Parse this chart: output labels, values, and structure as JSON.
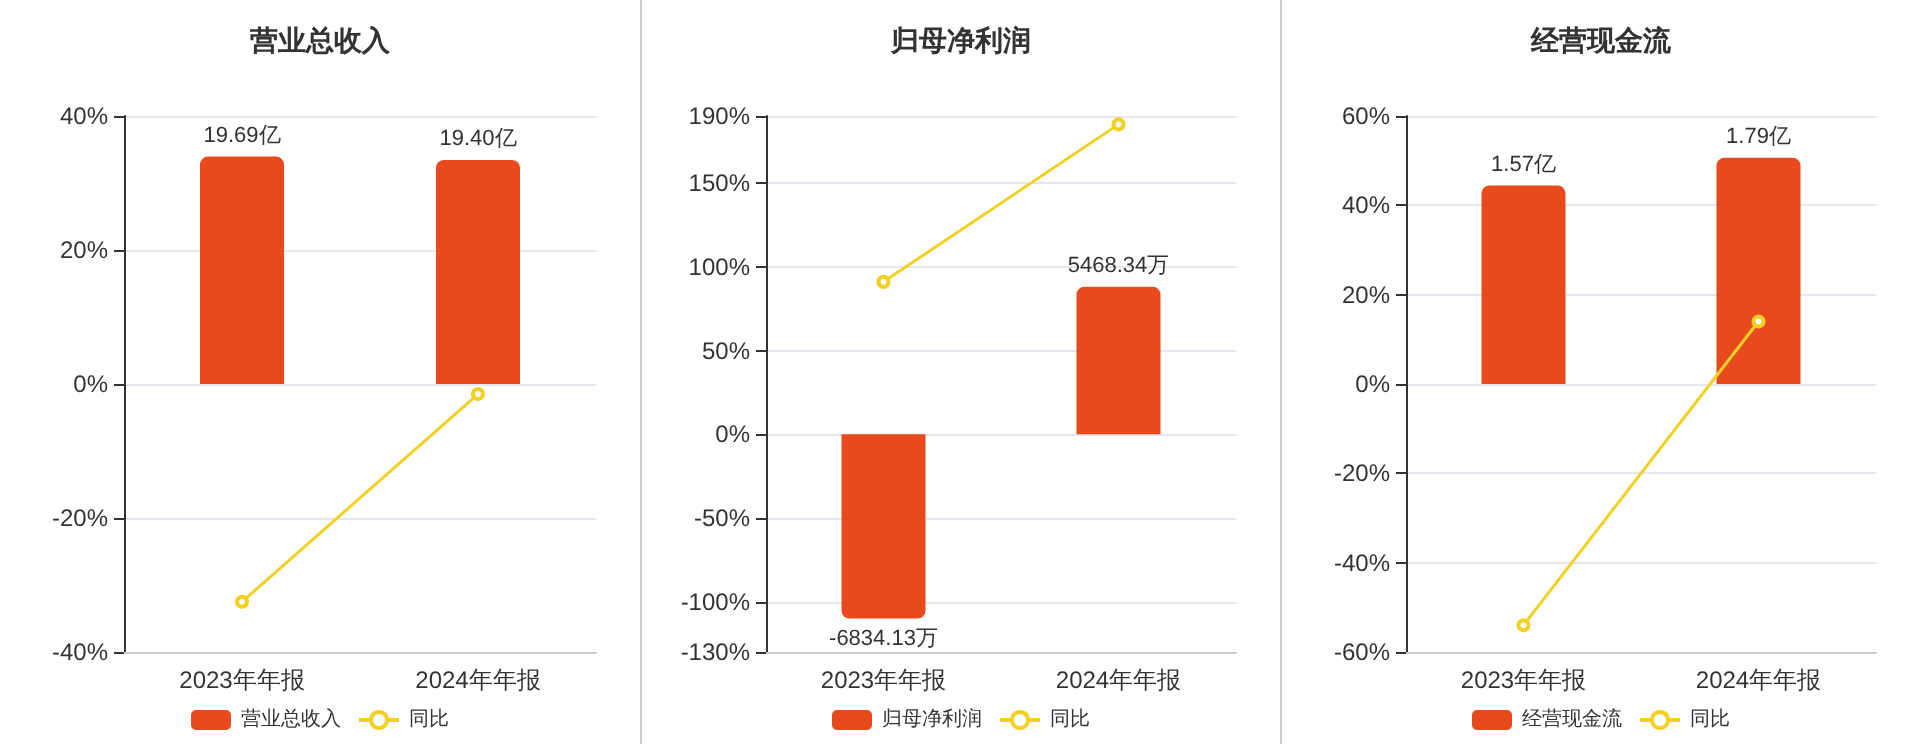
{
  "chart_data": [
    {
      "type": "bar",
      "title": "营业总收入",
      "categories": [
        "2023年年报",
        "2024年年报"
      ],
      "series": [
        {
          "name": "营业总收入",
          "axis": "y2",
          "color": "#e8491d",
          "values": [
            19.69,
            19.4
          ],
          "value_labels": [
            "19.69亿",
            "19.40亿"
          ]
        },
        {
          "name": "同比",
          "type": "line",
          "color": "#f2d024",
          "values": [
            -32.5,
            -1.5
          ]
        }
      ],
      "ylim": [
        -40,
        40
      ],
      "yticks": [
        {
          "value": -40,
          "label": "-40%"
        },
        {
          "value": -20,
          "label": "-20%"
        },
        {
          "value": 0,
          "label": "0%"
        },
        {
          "value": 20,
          "label": "20%"
        },
        {
          "value": 40,
          "label": "40%"
        }
      ],
      "y2lim": [
        -23.2,
        23.2
      ],
      "grid": "y",
      "legend": "bottom",
      "marker": "circle"
    },
    {
      "type": "bar",
      "title": "归母净利润",
      "categories": [
        "2023年年报",
        "2024年年报"
      ],
      "series": [
        {
          "name": "归母净利润",
          "axis": "y2",
          "color": "#e8491d",
          "values": [
            -6834.13,
            5468.34
          ],
          "value_labels": [
            "-6834.13万",
            "5468.34万"
          ]
        },
        {
          "name": "同比",
          "type": "line",
          "color": "#f2d024",
          "values": [
            91,
            185
          ]
        }
      ],
      "ylim": [
        -130,
        190
      ],
      "yticks": [
        {
          "value": -130,
          "label": "-130%"
        },
        {
          "value": -100,
          "label": "-100%"
        },
        {
          "value": -50,
          "label": "-50%"
        },
        {
          "value": 0,
          "label": "0%"
        },
        {
          "value": 50,
          "label": "50%"
        },
        {
          "value": 100,
          "label": "100%"
        },
        {
          "value": 150,
          "label": "150%"
        },
        {
          "value": 190,
          "label": "190%"
        }
      ],
      "y2lim": [
        -8077,
        11802
      ],
      "grid": "y",
      "legend": "bottom",
      "marker": "circle"
    },
    {
      "type": "bar",
      "title": "经营现金流",
      "categories": [
        "2023年年报",
        "2024年年报"
      ],
      "series": [
        {
          "name": "经营现金流",
          "axis": "y2",
          "color": "#e8491d",
          "values": [
            1.57,
            1.79
          ],
          "value_labels": [
            "1.57亿",
            "1.79亿"
          ]
        },
        {
          "name": "同比",
          "type": "line",
          "color": "#f2d024",
          "values": [
            -54,
            14
          ]
        }
      ],
      "ylim": [
        -60,
        60
      ],
      "yticks": [
        {
          "value": -60,
          "label": "-60%"
        },
        {
          "value": -40,
          "label": "-40%"
        },
        {
          "value": -20,
          "label": "-20%"
        },
        {
          "value": 0,
          "label": "0%"
        },
        {
          "value": 20,
          "label": "20%"
        },
        {
          "value": 40,
          "label": "40%"
        },
        {
          "value": 60,
          "label": "60%"
        }
      ],
      "y2lim": [
        -2.12,
        2.12
      ],
      "grid": "y",
      "legend": "bottom",
      "marker": "circle"
    }
  ]
}
